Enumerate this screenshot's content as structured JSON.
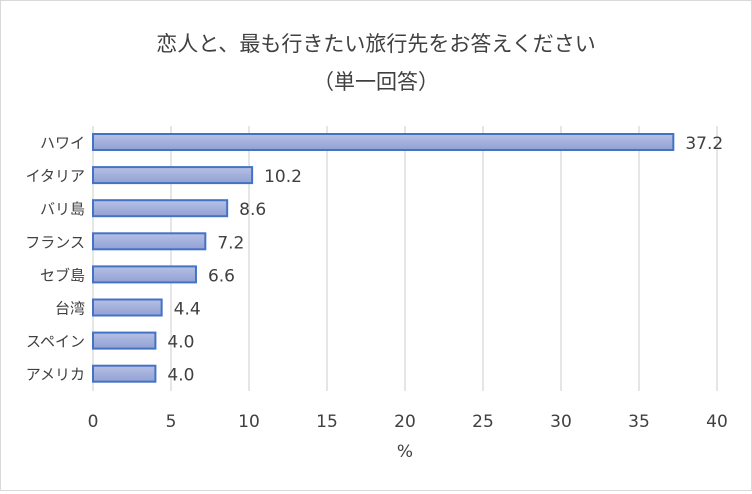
{
  "chart_data": {
    "type": "bar",
    "orientation": "horizontal",
    "title": "恋人と、最も行きたい旅行先をお答えください",
    "subtitle": "（単一回答）",
    "categories": [
      "ハワイ",
      "イタリア",
      "バリ島",
      "フランス",
      "セブ島",
      "台湾",
      "スペイン",
      "アメリカ"
    ],
    "values": [
      37.2,
      10.2,
      8.6,
      7.2,
      6.6,
      4.4,
      4.0,
      4.0
    ],
    "value_labels": [
      "37.2",
      "10.2",
      "8.6",
      "7.2",
      "6.6",
      "4.4",
      "4.0",
      "4.0"
    ],
    "xlabel": "%",
    "ylabel": "",
    "xlim": [
      0,
      40
    ],
    "xticks": [
      0,
      5,
      10,
      15,
      20,
      25,
      30,
      35,
      40
    ],
    "grid": true,
    "colors": {
      "bar_fill": "#a3b0dc",
      "bar_border": "#4472c4",
      "grid": "#d9d9d9"
    }
  }
}
